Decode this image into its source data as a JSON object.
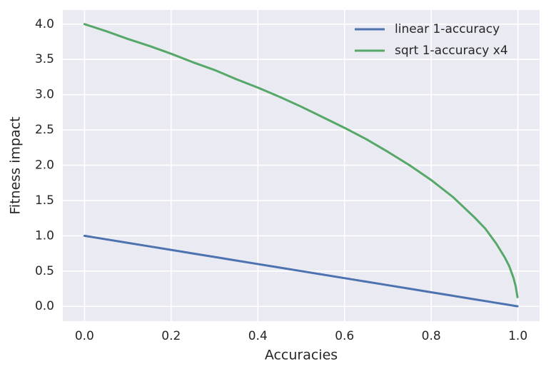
{
  "chart_data": {
    "type": "line",
    "x_label": "Accuracies",
    "y_label": "Fitness impact",
    "x": [
      0,
      0.05,
      0.1,
      0.15,
      0.2,
      0.25,
      0.3,
      0.35,
      0.4,
      0.45,
      0.5,
      0.55,
      0.6,
      0.65,
      0.7,
      0.75,
      0.8,
      0.85,
      0.9,
      0.925,
      0.95,
      0.97,
      0.98,
      0.99,
      0.995,
      0.999
    ],
    "series": [
      {
        "name": "linear 1-accuracy",
        "color": "#4c72b0",
        "values": [
          1,
          0.95,
          0.9,
          0.85,
          0.8,
          0.75,
          0.7,
          0.65,
          0.6,
          0.55,
          0.5,
          0.45,
          0.4,
          0.35,
          0.3,
          0.25,
          0.2,
          0.15,
          0.1,
          0.075,
          0.05,
          0.03,
          0.02,
          0.01,
          0.005,
          0.001
        ]
      },
      {
        "name": "sqrt 1-accuracy x4",
        "color": "#55a868",
        "values": [
          4,
          3.9,
          3.79,
          3.69,
          3.58,
          3.46,
          3.35,
          3.22,
          3.1,
          2.97,
          2.83,
          2.68,
          2.53,
          2.37,
          2.19,
          2.0,
          1.79,
          1.55,
          1.26,
          1.1,
          0.89,
          0.69,
          0.57,
          0.4,
          0.28,
          0.13
        ]
      }
    ],
    "xlim": [
      -0.05,
      1.05
    ],
    "ylim": [
      -0.21,
      4.2
    ],
    "xticks": [
      {
        "value": 0,
        "label": "0.0"
      },
      {
        "value": 0.2,
        "label": "0.2"
      },
      {
        "value": 0.4,
        "label": "0.4"
      },
      {
        "value": 0.6,
        "label": "0.6"
      },
      {
        "value": 0.8,
        "label": "0.8"
      },
      {
        "value": 1,
        "label": "1.0"
      }
    ],
    "yticks": [
      {
        "value": 0,
        "label": "0.0"
      },
      {
        "value": 0.5,
        "label": "0.5"
      },
      {
        "value": 1,
        "label": "1.0"
      },
      {
        "value": 1.5,
        "label": "1.5"
      },
      {
        "value": 2,
        "label": "2.0"
      },
      {
        "value": 2.5,
        "label": "2.5"
      },
      {
        "value": 3,
        "label": "3.0"
      },
      {
        "value": 3.5,
        "label": "3.5"
      },
      {
        "value": 4,
        "label": "4.0"
      }
    ],
    "grid": true,
    "legend": "upper right",
    "background": "#eaeaf2"
  }
}
